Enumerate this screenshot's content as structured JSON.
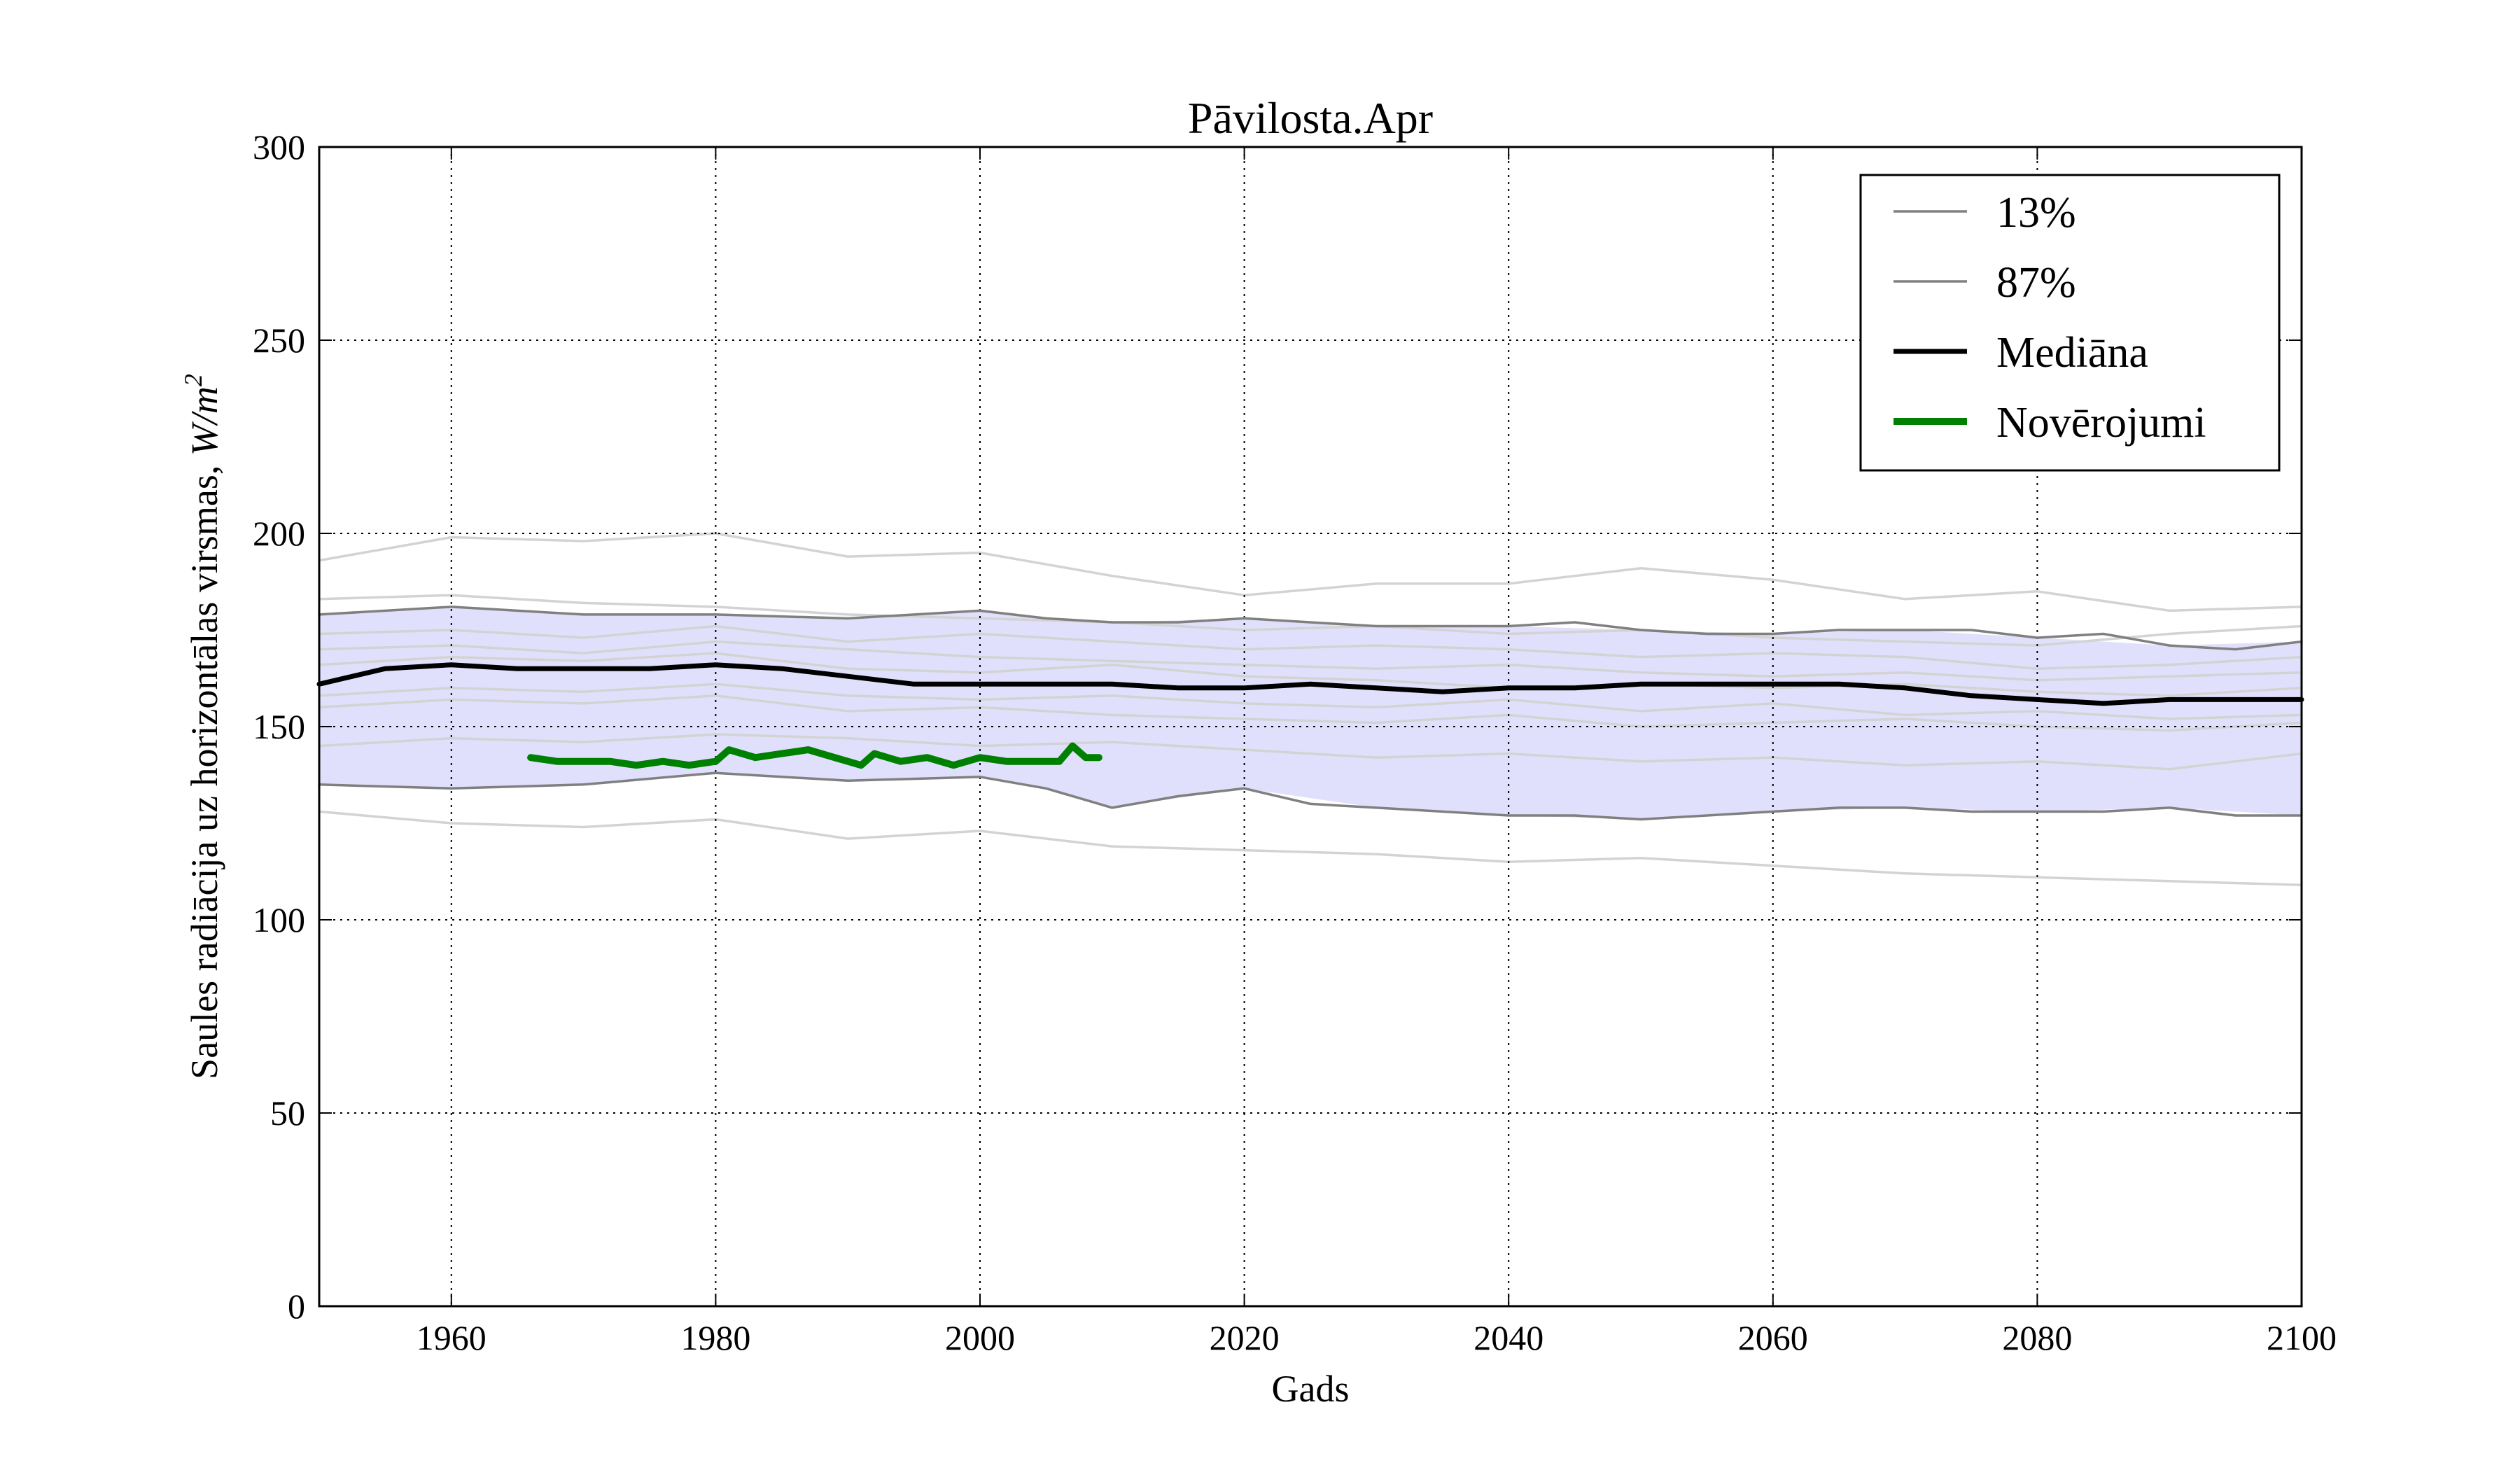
{
  "chart_data": {
    "type": "line",
    "title": "Pāvilosta.Apr",
    "xlabel": "Gads",
    "ylabel": "Saules radiācija uz horizontālas virsmas, W/m²",
    "ylabel_prefix": "Saules radiācija uz horizontālas virsmas, ",
    "ylabel_unit": "W/m",
    "ylabel_unit_exp": "2",
    "xlim": [
      1950,
      2100
    ],
    "ylim": [
      0,
      300
    ],
    "xticks": [
      1960,
      1980,
      2000,
      2020,
      2040,
      2060,
      2080,
      2100
    ],
    "yticks": [
      0,
      50,
      100,
      150,
      200,
      250,
      300
    ],
    "grid": true,
    "legend_position": "top-right",
    "band": {
      "fill_color": "#e0e0fc",
      "x": [
        1950,
        1960,
        1970,
        1980,
        1990,
        2000,
        2005,
        2010,
        2020,
        2030,
        2040,
        2050,
        2060,
        2070,
        2080,
        2090,
        2100
      ],
      "lower": [
        135,
        134,
        135,
        138,
        136,
        137,
        134,
        129,
        134,
        129,
        127,
        126,
        128,
        129,
        128,
        129,
        127
      ],
      "upper": [
        179,
        181,
        179,
        179,
        178,
        180,
        178,
        177,
        178,
        176,
        176,
        175,
        174,
        175,
        173,
        171,
        172
      ]
    },
    "ensemble": {
      "color": "#d3d3d3",
      "x": [
        1950,
        1960,
        1970,
        1980,
        1990,
        2000,
        2010,
        2020,
        2030,
        2040,
        2050,
        2060,
        2070,
        2080,
        2090,
        2100
      ],
      "members": [
        [
          193,
          199,
          198,
          200,
          194,
          195,
          189,
          184,
          187,
          187,
          191,
          188,
          183,
          185,
          180,
          181
        ],
        [
          183,
          184,
          182,
          181,
          179,
          178,
          177,
          175,
          176,
          174,
          175,
          173,
          172,
          171,
          174,
          176
        ],
        [
          174,
          175,
          173,
          176,
          172,
          174,
          172,
          170,
          171,
          170,
          168,
          169,
          168,
          165,
          166,
          168
        ],
        [
          170,
          171,
          169,
          172,
          170,
          168,
          167,
          166,
          165,
          166,
          164,
          163,
          164,
          162,
          163,
          164
        ],
        [
          166,
          168,
          167,
          169,
          165,
          164,
          166,
          163,
          162,
          160,
          161,
          160,
          161,
          159,
          158,
          160
        ],
        [
          158,
          160,
          159,
          161,
          158,
          157,
          158,
          156,
          155,
          157,
          154,
          156,
          153,
          154,
          152,
          153
        ],
        [
          155,
          157,
          156,
          158,
          154,
          155,
          153,
          152,
          151,
          153,
          150,
          151,
          152,
          150,
          149,
          151
        ],
        [
          145,
          147,
          146,
          148,
          147,
          145,
          146,
          144,
          142,
          143,
          141,
          142,
          140,
          141,
          139,
          143
        ],
        [
          128,
          125,
          124,
          126,
          121,
          123,
          119,
          118,
          117,
          115,
          116,
          114,
          112,
          111,
          110,
          109
        ]
      ]
    },
    "series": [
      {
        "name": "13%",
        "color": "#808080",
        "x": [
          1950,
          1960,
          1970,
          1980,
          1990,
          2000,
          2005,
          2010,
          2015,
          2020,
          2025,
          2030,
          2035,
          2040,
          2045,
          2050,
          2055,
          2060,
          2065,
          2070,
          2075,
          2080,
          2085,
          2090,
          2095,
          2100
        ],
        "values": [
          135,
          134,
          135,
          138,
          136,
          137,
          134,
          129,
          132,
          134,
          130,
          129,
          128,
          127,
          127,
          126,
          127,
          128,
          129,
          129,
          128,
          128,
          128,
          129,
          127,
          127
        ]
      },
      {
        "name": "87%",
        "color": "#808080",
        "x": [
          1950,
          1960,
          1970,
          1980,
          1990,
          2000,
          2005,
          2010,
          2015,
          2020,
          2025,
          2030,
          2035,
          2040,
          2045,
          2050,
          2055,
          2060,
          2065,
          2070,
          2075,
          2080,
          2085,
          2090,
          2095,
          2100
        ],
        "values": [
          179,
          181,
          179,
          179,
          178,
          180,
          178,
          177,
          177,
          178,
          177,
          176,
          176,
          176,
          177,
          175,
          174,
          174,
          175,
          175,
          175,
          173,
          174,
          171,
          170,
          172
        ]
      },
      {
        "name": "Mediāna",
        "color": "#000000",
        "x": [
          1950,
          1955,
          1960,
          1965,
          1970,
          1975,
          1980,
          1985,
          1990,
          1995,
          2000,
          2005,
          2010,
          2015,
          2020,
          2025,
          2030,
          2035,
          2040,
          2045,
          2050,
          2055,
          2060,
          2065,
          2070,
          2075,
          2080,
          2085,
          2090,
          2095,
          2100
        ],
        "values": [
          161,
          165,
          166,
          165,
          165,
          165,
          166,
          165,
          163,
          161,
          161,
          161,
          161,
          160,
          160,
          161,
          160,
          159,
          160,
          160,
          161,
          161,
          161,
          161,
          160,
          158,
          157,
          156,
          157,
          157,
          157
        ]
      },
      {
        "name": "Novērojumi",
        "color": "#008000",
        "x": [
          1966,
          1968,
          1970,
          1972,
          1974,
          1976,
          1978,
          1980,
          1981,
          1983,
          1985,
          1987,
          1989,
          1991,
          1992,
          1994,
          1996,
          1998,
          2000,
          2002,
          2004,
          2006,
          2007,
          2008,
          2009
        ],
        "values": [
          142,
          141,
          141,
          141,
          140,
          141,
          140,
          141,
          144,
          142,
          143,
          144,
          142,
          140,
          143,
          141,
          142,
          140,
          142,
          141,
          141,
          141,
          145,
          142,
          142
        ]
      }
    ]
  }
}
